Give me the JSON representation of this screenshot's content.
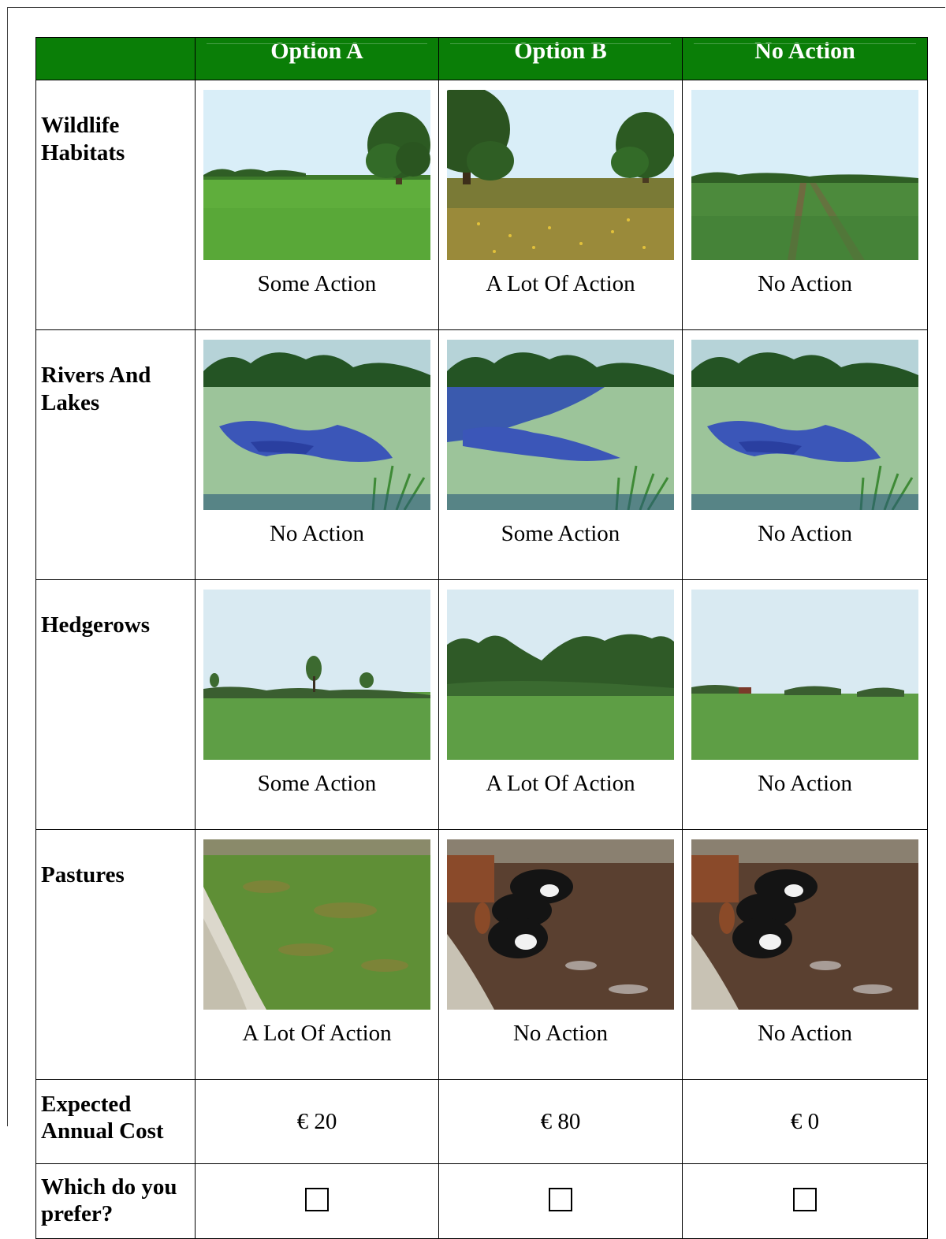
{
  "header": {
    "corner": "",
    "options": [
      "Option A",
      "Option B",
      "No Action"
    ]
  },
  "rows": [
    {
      "label": "Wildlife Habitats",
      "cells": [
        {
          "caption": "Some Action",
          "image": "grass-field-with-tree-photo"
        },
        {
          "caption": "A Lot Of Action",
          "image": "wildflower-meadow-with-trees-photo"
        },
        {
          "caption": "No Action",
          "image": "wheat-crop-field-photo"
        }
      ]
    },
    {
      "label": "Rivers And Lakes",
      "cells": [
        {
          "caption": "No Action",
          "image": "algae-covered-lake-photo"
        },
        {
          "caption": "Some Action",
          "image": "partly-clear-lake-photo"
        },
        {
          "caption": "No Action",
          "image": "algae-covered-lake-photo"
        }
      ]
    },
    {
      "label": "Hedgerows",
      "cells": [
        {
          "caption": "Some Action",
          "image": "field-with-sparse-hedgerow-photo"
        },
        {
          "caption": "A Lot Of Action",
          "image": "field-with-dense-hedgerow-photo"
        },
        {
          "caption": "No Action",
          "image": "field-with-low-hedgerow-photo"
        }
      ]
    },
    {
      "label": "Pastures",
      "cells": [
        {
          "caption": "A Lot Of Action",
          "image": "green-pasture-with-rocks-photo"
        },
        {
          "caption": "No Action",
          "image": "cattle-on-muddy-ground-photo"
        },
        {
          "caption": "No Action",
          "image": "cattle-on-muddy-ground-photo"
        }
      ]
    }
  ],
  "cost": {
    "label": "Expected Annual Cost",
    "values": [
      "€ 20",
      "€ 80",
      "€ 0"
    ]
  },
  "preference": {
    "label": "Which do you prefer?",
    "checked": [
      false,
      false,
      false
    ]
  },
  "colors": {
    "header_green": "#0a7e07",
    "sky": "#d9eef8",
    "grass": "#5aa83a"
  }
}
